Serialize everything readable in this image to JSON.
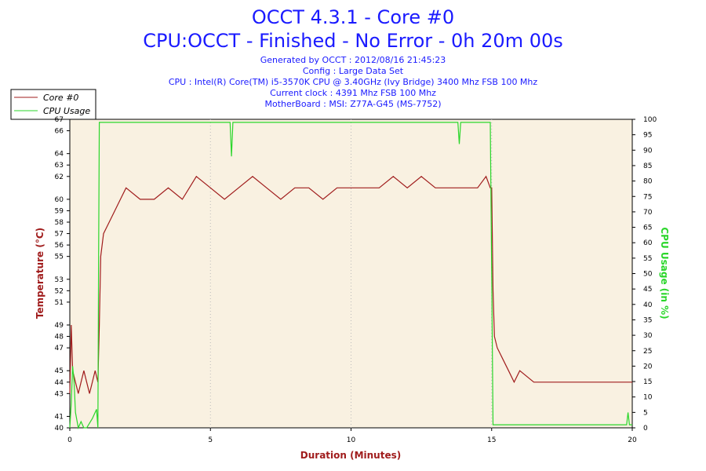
{
  "header": {
    "title_line1": "OCCT 4.3.1 - Core #0",
    "title_line2": "CPU:OCCT - Finished - No Error - 0h 20m 00s",
    "info": [
      "Generated by OCCT : 2012/08/16 21:45:23",
      "Config : Large Data Set",
      "CPU : Intel(R) Core(TM) i5-3570K CPU @ 3.40GHz (Ivy Bridge) 3400 Mhz FSB 100 Mhz",
      "Current clock : 4391 Mhz FSB 100 Mhz",
      "MotherBoard : MSI: Z77A-G45 (MS-7752)"
    ]
  },
  "legend": {
    "position": "top-left",
    "items": [
      {
        "label": "Core #0",
        "color": "#a01c1c"
      },
      {
        "label": "CPU Usage",
        "color": "#2ad62a"
      }
    ]
  },
  "colors": {
    "plot_bg": "#f9f1e1",
    "temp": "#a01c1c",
    "usage": "#2ad62a",
    "grid": "#bbbbbb"
  },
  "chart_data": {
    "type": "line",
    "grid": true,
    "xlabel": "Duration (Minutes)",
    "ylabel_left": "Temperature (°C)",
    "ylabel_right": "CPU Usage (in %)",
    "xlim": [
      0,
      20
    ],
    "ylim_left": [
      40,
      67
    ],
    "ylim_right": [
      0,
      100
    ],
    "x_ticks": [
      "0",
      "5",
      "10",
      "15",
      "20"
    ],
    "y_left_ticks": [
      "40",
      "41",
      "43",
      "44",
      "45",
      "47",
      "48",
      "49",
      "51",
      "52",
      "53",
      "55",
      "56",
      "57",
      "58",
      "59",
      "60",
      "62",
      "63",
      "64",
      "66",
      "67"
    ],
    "y_left_tick_values": [
      40,
      41,
      43,
      44,
      45,
      47,
      48,
      49,
      51,
      52,
      53,
      55,
      56,
      57,
      58,
      59,
      60,
      62,
      63,
      64,
      66,
      67
    ],
    "y_right_ticks": [
      "0",
      "5",
      "10",
      "15",
      "20",
      "25",
      "30",
      "35",
      "40",
      "45",
      "50",
      "55",
      "60",
      "65",
      "70",
      "75",
      "80",
      "85",
      "90",
      "95",
      "100"
    ],
    "series": [
      {
        "name": "Core #0",
        "axis": "left",
        "x": [
          0,
          0.05,
          0.1,
          0.2,
          0.3,
          0.4,
          0.5,
          0.6,
          0.7,
          0.8,
          0.9,
          1.0,
          1.05,
          1.1,
          1.2,
          1.4,
          1.6,
          1.8,
          2.0,
          2.5,
          3.0,
          3.5,
          4.0,
          4.5,
          5.0,
          5.5,
          6.0,
          6.5,
          7.0,
          7.5,
          8.0,
          8.5,
          9.0,
          9.5,
          10.0,
          10.5,
          11.0,
          11.5,
          12.0,
          12.5,
          13.0,
          13.5,
          14.0,
          14.5,
          14.8,
          14.95,
          15.0,
          15.05,
          15.1,
          15.2,
          15.4,
          15.6,
          15.8,
          16.0,
          16.5,
          17.0,
          17.5,
          18.0,
          18.5,
          19.0,
          19.5,
          20.0
        ],
        "values": [
          43,
          49,
          45,
          44,
          43,
          44,
          45,
          44,
          43,
          44,
          45,
          44,
          49,
          55,
          57,
          58,
          59,
          60,
          61,
          60,
          60,
          61,
          60,
          62,
          61,
          60,
          61,
          62,
          61,
          60,
          61,
          61,
          60,
          61,
          61,
          61,
          61,
          62,
          61,
          62,
          61,
          61,
          61,
          61,
          62,
          61,
          61,
          52,
          48,
          47,
          46,
          45,
          44,
          45,
          44,
          44,
          44,
          44,
          44,
          44,
          44,
          44
        ]
      },
      {
        "name": "CPU Usage",
        "axis": "right",
        "x": [
          0,
          0.05,
          0.1,
          0.15,
          0.2,
          0.3,
          0.4,
          0.5,
          0.6,
          0.8,
          0.95,
          1.0,
          1.02,
          1.05,
          1.5,
          2.0,
          3.0,
          4.0,
          5.0,
          5.7,
          5.75,
          5.8,
          6.0,
          7.0,
          8.0,
          9.0,
          10.0,
          11.0,
          12.0,
          13.0,
          13.8,
          13.85,
          13.9,
          14.0,
          14.9,
          14.95,
          15.0,
          15.05,
          15.5,
          16.0,
          17.0,
          18.0,
          19.0,
          19.8,
          19.85,
          19.9,
          20.0
        ],
        "values": [
          0,
          8,
          20,
          15,
          5,
          0,
          2,
          0,
          0,
          3,
          6,
          0,
          50,
          99,
          99,
          99,
          99,
          99,
          99,
          99,
          88,
          99,
          99,
          99,
          99,
          99,
          99,
          99,
          99,
          99,
          99,
          92,
          99,
          99,
          99,
          99,
          50,
          1,
          1,
          1,
          1,
          1,
          1,
          1,
          5,
          1,
          1
        ]
      }
    ]
  }
}
